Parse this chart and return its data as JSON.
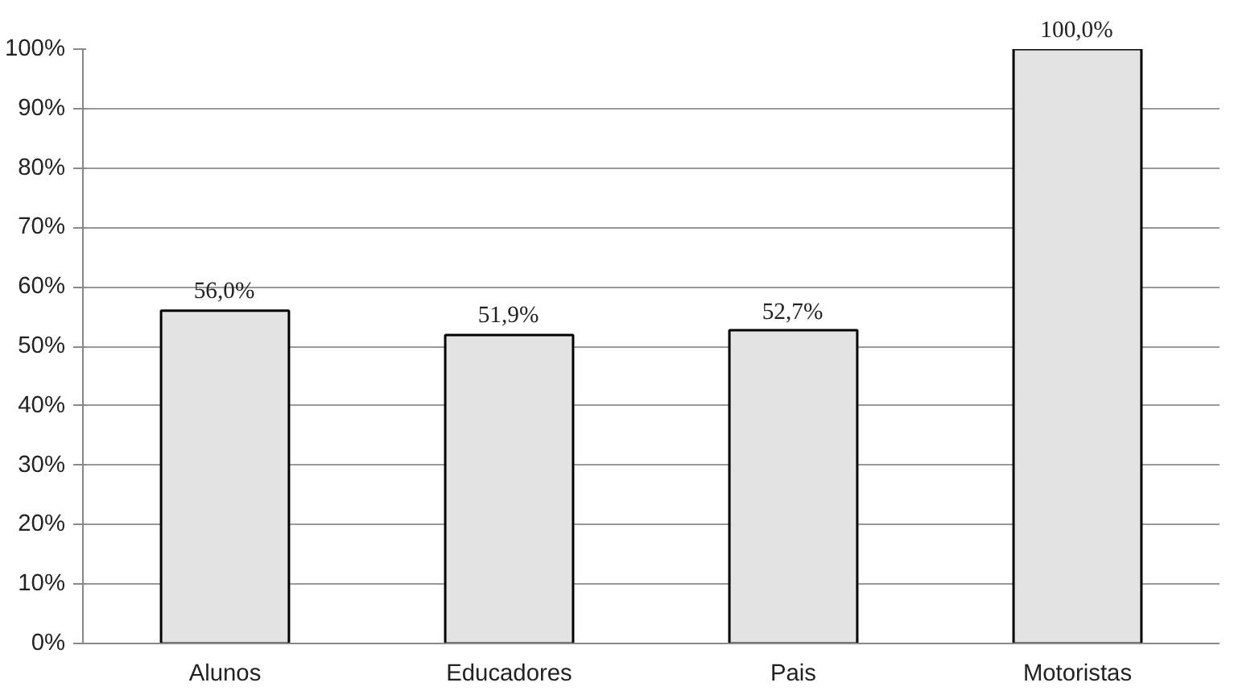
{
  "chart_data": {
    "type": "bar",
    "categories": [
      "Alunos",
      "Educadores",
      "Pais",
      "Motoristas"
    ],
    "values": [
      56.0,
      51.9,
      52.7,
      100.0
    ],
    "value_labels": [
      "56,0%",
      "51,9%",
      "52,7%",
      "100,0%"
    ],
    "color": "#e3e3e3",
    "ylim": [
      0,
      100
    ],
    "yticks": [
      {
        "value": 0,
        "label": "0%"
      },
      {
        "value": 10,
        "label": "10%"
      },
      {
        "value": 20,
        "label": "20%"
      },
      {
        "value": 30,
        "label": "30%"
      },
      {
        "value": 40,
        "label": "40%"
      },
      {
        "value": 50,
        "label": "50%"
      },
      {
        "value": 60,
        "label": "60%"
      },
      {
        "value": 70,
        "label": "70%"
      },
      {
        "value": 80,
        "label": "80%"
      },
      {
        "value": 90,
        "label": "90%"
      },
      {
        "value": 100,
        "label": "100%"
      }
    ],
    "grid": "y"
  }
}
